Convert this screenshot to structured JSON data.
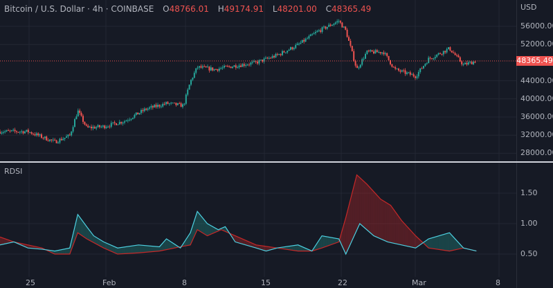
{
  "header": {
    "symbol": "Bitcoin / U.S. Dollar · 4h · COINBASE",
    "open_label": "O",
    "open": "48766.01",
    "high_label": "H",
    "high": "49174.91",
    "low_label": "L",
    "low": "48201.00",
    "close_label": "C",
    "close": "48365.49"
  },
  "price_axis": {
    "currency": "USD",
    "ticks": [
      "56000.00",
      "52000.00",
      "44000.00",
      "40000.00",
      "36000.00",
      "32000.00",
      "28000.00"
    ],
    "tick_values": [
      56000,
      52000,
      44000,
      40000,
      36000,
      32000,
      28000
    ],
    "last_price": "48365.49",
    "last_value": 48365.49
  },
  "indicator": {
    "name": "RDSI",
    "ticks": [
      "1.50",
      "1.00",
      "0.50"
    ],
    "tick_values": [
      1.5,
      1.0,
      0.5
    ]
  },
  "time_axis": {
    "labels": [
      "25",
      "Feb",
      "8",
      "15",
      "22",
      "Mar",
      "8"
    ],
    "label_days": [
      3,
      10,
      18,
      25,
      32,
      38,
      46
    ]
  },
  "colors": {
    "up": "#26a69a",
    "down": "#ef5350",
    "line_a": "#4dd0e1",
    "line_b": "#c62828"
  },
  "chart_data": {
    "type": "candlestick",
    "price_path_days_price": [
      [
        0,
        32800
      ],
      [
        2.8,
        32800
      ],
      [
        5.5,
        30500
      ],
      [
        7,
        31900
      ],
      [
        7.8,
        37400
      ],
      [
        8.7,
        33600
      ],
      [
        10.4,
        33900
      ],
      [
        12.5,
        35100
      ],
      [
        14.6,
        37700
      ],
      [
        16.7,
        39000
      ],
      [
        18.4,
        38500
      ],
      [
        19.1,
        43800
      ],
      [
        19.8,
        47000
      ],
      [
        21.5,
        46500
      ],
      [
        23.6,
        47300
      ],
      [
        25.7,
        48000
      ],
      [
        27.8,
        49600
      ],
      [
        29.9,
        51900
      ],
      [
        31.9,
        54900
      ],
      [
        34,
        57200
      ],
      [
        34.7,
        55000
      ],
      [
        35.8,
        46500
      ],
      [
        36.8,
        50300
      ],
      [
        38.5,
        50300
      ],
      [
        39.6,
        46500
      ],
      [
        41.7,
        45000
      ],
      [
        43,
        48800
      ],
      [
        45.1,
        51100
      ],
      [
        46.5,
        47500
      ],
      [
        47.8,
        48365
      ]
    ],
    "rdsi_a": [
      [
        0,
        0.65
      ],
      [
        1.4,
        0.7
      ],
      [
        2.8,
        0.6
      ],
      [
        4.2,
        0.58
      ],
      [
        5.5,
        0.55
      ],
      [
        7,
        0.6
      ],
      [
        7.8,
        1.15
      ],
      [
        8.7,
        0.95
      ],
      [
        9.4,
        0.8
      ],
      [
        10.4,
        0.7
      ],
      [
        11.8,
        0.6
      ],
      [
        13.9,
        0.65
      ],
      [
        16,
        0.62
      ],
      [
        16.7,
        0.75
      ],
      [
        18.1,
        0.6
      ],
      [
        19.1,
        0.85
      ],
      [
        19.8,
        1.2
      ],
      [
        20.8,
        1.0
      ],
      [
        21.9,
        0.9
      ],
      [
        22.6,
        0.95
      ],
      [
        23.6,
        0.7
      ],
      [
        25.7,
        0.6
      ],
      [
        26.7,
        0.55
      ],
      [
        27.8,
        0.6
      ],
      [
        29.9,
        0.65
      ],
      [
        31.3,
        0.55
      ],
      [
        32.3,
        0.8
      ],
      [
        34,
        0.75
      ],
      [
        34.7,
        0.5
      ],
      [
        36.1,
        1.0
      ],
      [
        37.5,
        0.8
      ],
      [
        38.9,
        0.7
      ],
      [
        40.3,
        0.65
      ],
      [
        41.7,
        0.6
      ],
      [
        43,
        0.75
      ],
      [
        45.1,
        0.85
      ],
      [
        46.5,
        0.6
      ],
      [
        47.8,
        0.55
      ]
    ],
    "rdsi_b": [
      [
        0,
        0.78
      ],
      [
        1.4,
        0.7
      ],
      [
        2.8,
        0.65
      ],
      [
        4.2,
        0.6
      ],
      [
        5.5,
        0.5
      ],
      [
        7,
        0.5
      ],
      [
        7.8,
        0.85
      ],
      [
        8.7,
        0.75
      ],
      [
        10.4,
        0.6
      ],
      [
        11.8,
        0.5
      ],
      [
        13.9,
        0.52
      ],
      [
        16,
        0.55
      ],
      [
        18.1,
        0.62
      ],
      [
        19.1,
        0.65
      ],
      [
        19.8,
        0.9
      ],
      [
        20.8,
        0.8
      ],
      [
        22.2,
        0.9
      ],
      [
        23.6,
        0.8
      ],
      [
        25.7,
        0.65
      ],
      [
        27.8,
        0.6
      ],
      [
        29.9,
        0.55
      ],
      [
        31.3,
        0.55
      ],
      [
        32.3,
        0.6
      ],
      [
        34,
        0.7
      ],
      [
        34.7,
        1.1
      ],
      [
        35.8,
        1.8
      ],
      [
        36.8,
        1.65
      ],
      [
        38.2,
        1.4
      ],
      [
        39.2,
        1.3
      ],
      [
        40.3,
        1.05
      ],
      [
        41.7,
        0.8
      ],
      [
        43,
        0.6
      ],
      [
        45.1,
        0.55
      ],
      [
        46.5,
        0.6
      ],
      [
        47.8,
        0.55
      ]
    ]
  }
}
